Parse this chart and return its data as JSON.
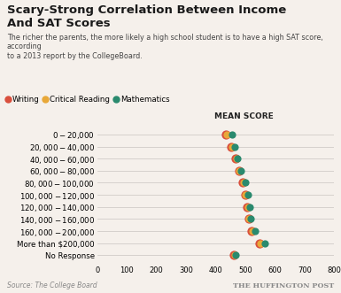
{
  "title_line1": "Scary-Strong Correlation Between Income",
  "title_line2": "And SAT Scores",
  "subtitle": "The richer the parents, the more likely a high school student is to have a high SAT score, according\nto a 2013 report by the CollegeBoard.",
  "source": "Source: The College Board",
  "brand": "THE HUFFINGTON POST",
  "categories": [
    "$0-$20,000",
    "$20,000-$40,000",
    "$40,000-$60,000",
    "$60,000-$80,000",
    "$80,000-$100,000",
    "$100,000-$120,000",
    "$120,000-$140,000",
    "$140,000-$160,000",
    "$160,000-$200,000",
    "More than $200,000",
    "No Response"
  ],
  "writing": [
    434,
    453,
    468,
    479,
    492,
    499,
    507,
    511,
    521,
    549,
    462
  ],
  "critical_reading": [
    437,
    456,
    469,
    480,
    493,
    501,
    509,
    513,
    523,
    552,
    465
  ],
  "mathematics": [
    456,
    465,
    474,
    484,
    501,
    509,
    515,
    519,
    533,
    567,
    468
  ],
  "writing_color": "#d94f3d",
  "critical_reading_color": "#e8a838",
  "mathematics_color": "#2a8a6e",
  "xlim": [
    0,
    800
  ],
  "xticks": [
    0,
    100,
    200,
    300,
    400,
    500,
    600,
    700,
    800
  ],
  "bg_color": "#f5f0eb",
  "grid_color": "#d0ccc8",
  "mean_score_label": "MEAN SCORE"
}
